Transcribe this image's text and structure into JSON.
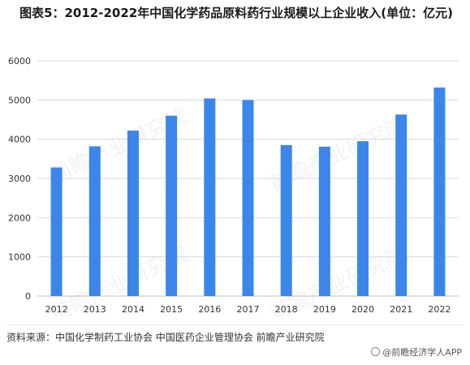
{
  "title": "图表5：2012-2022年中国化学药品原料药行业规模以上企业收入(单位：亿元)",
  "source": "资料来源：中国化学制药工业协会 中国医药企业管理协会 前瞻产业研究院",
  "brand": "@前瞻经济学人APP",
  "watermark": "前瞻产业研究院",
  "colors": {
    "bar": "#3b86e8",
    "grid": "#d9d9d9",
    "axis": "#bfbfbf",
    "tick_text": "#333333"
  },
  "chart_data": {
    "type": "bar",
    "categories": [
      "2012",
      "2013",
      "2014",
      "2015",
      "2016",
      "2017",
      "2018",
      "2019",
      "2020",
      "2021",
      "2022"
    ],
    "values": [
      3280,
      3820,
      4220,
      4600,
      5040,
      5000,
      3850,
      3810,
      3950,
      4630,
      5320
    ],
    "yticks": [
      0,
      1000,
      2000,
      3000,
      4000,
      5000,
      6000
    ],
    "ylim": [
      0,
      6000
    ],
    "grid": true,
    "legend": "none"
  }
}
